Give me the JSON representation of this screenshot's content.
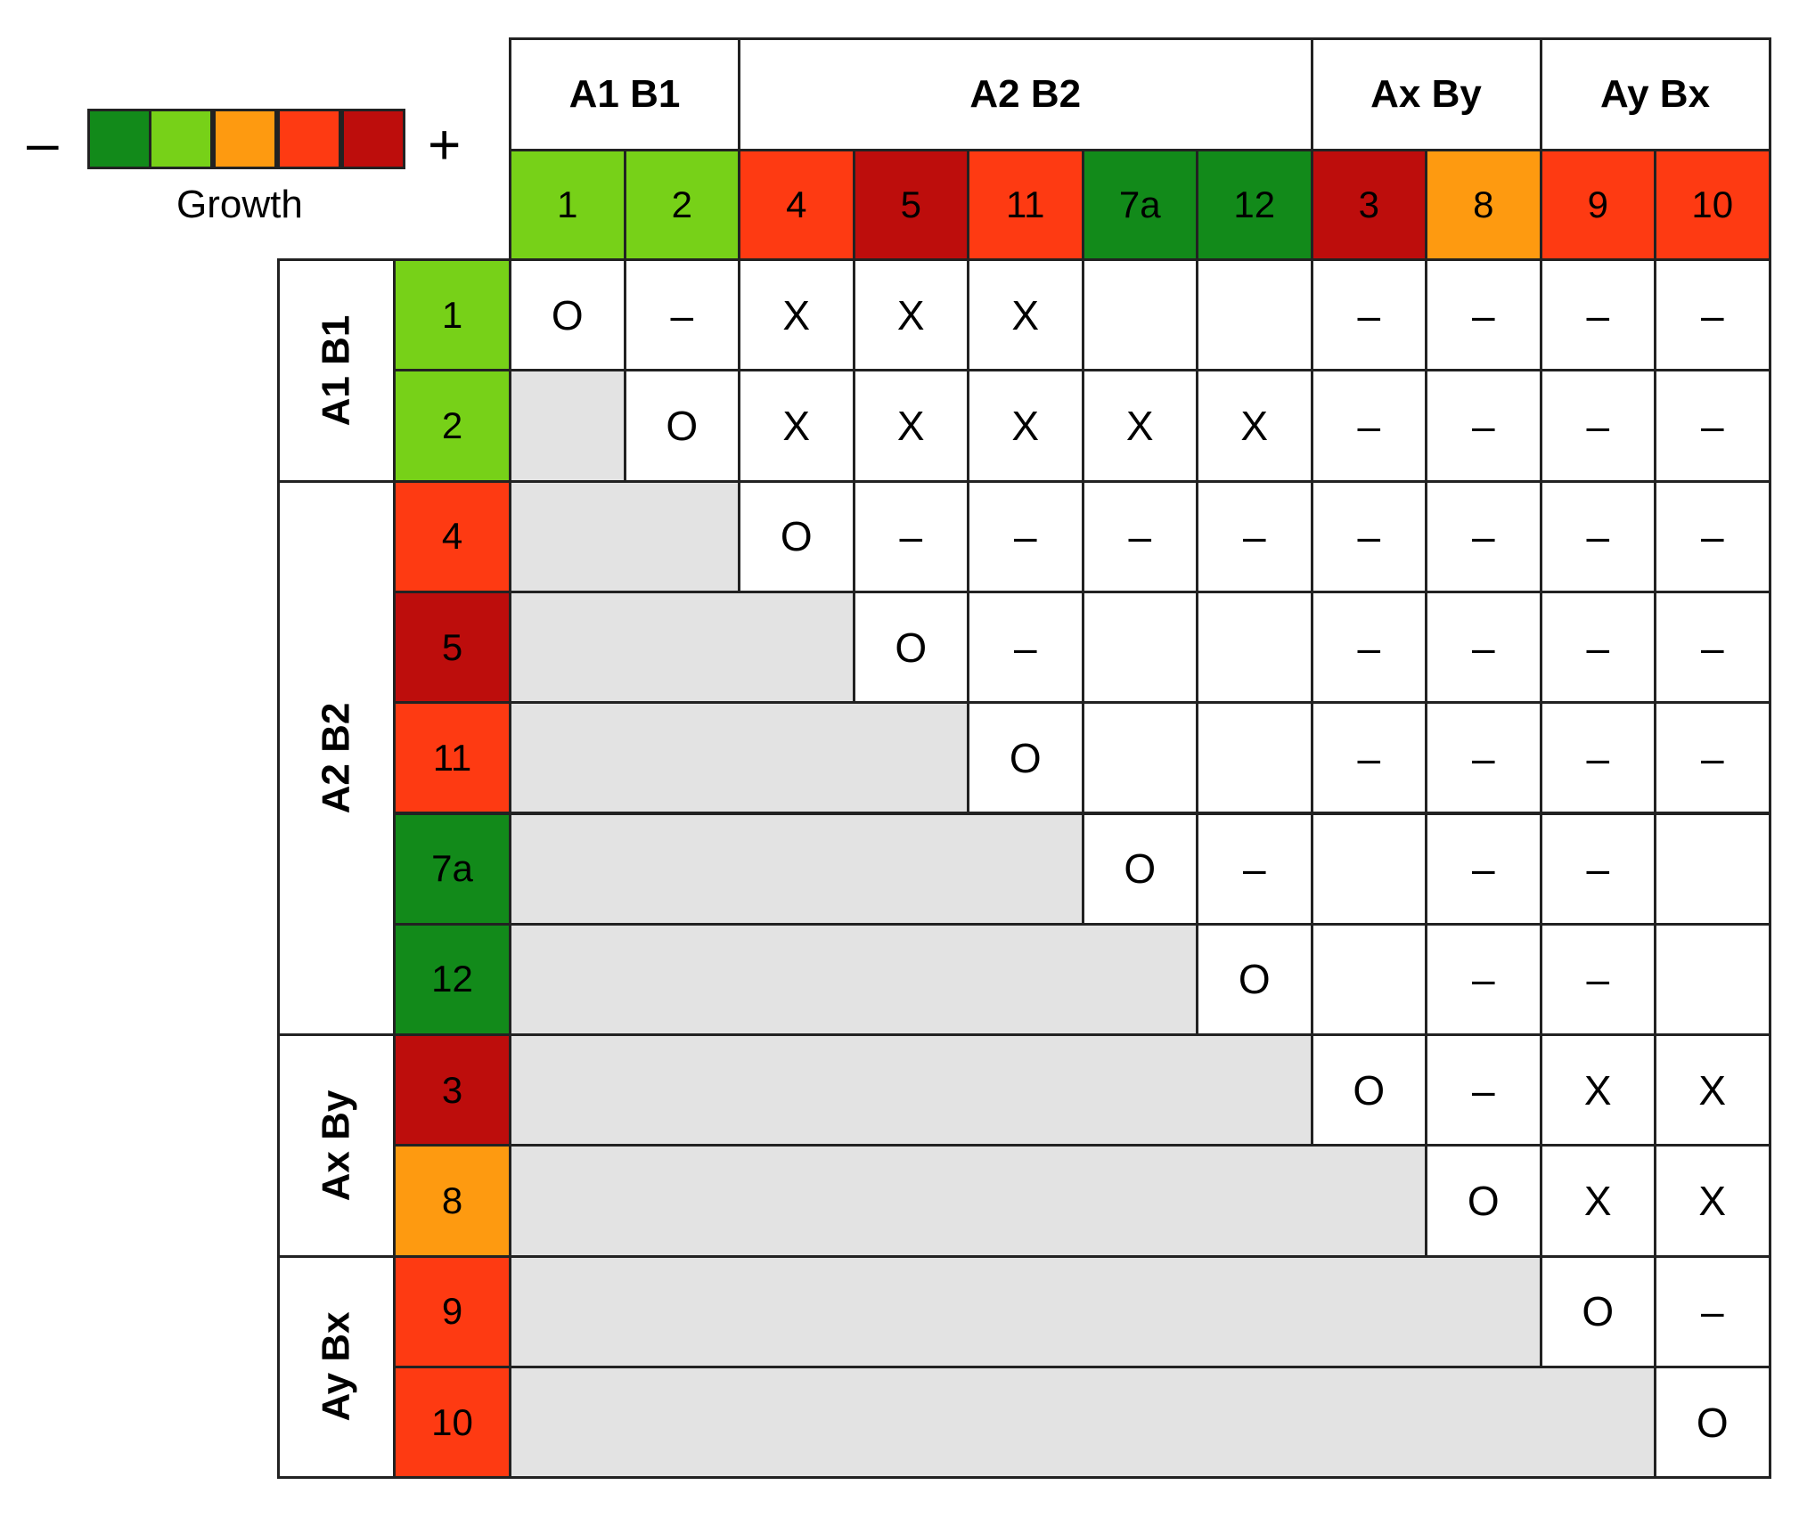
{
  "legend": {
    "minus": "–",
    "plus": "+",
    "label": "Growth",
    "scale": [
      "#128a1a",
      "#77d118",
      "#fe9a10",
      "#fe3a12",
      "#bd0d0c"
    ]
  },
  "groups": [
    {
      "name": "A1 B1",
      "members": [
        "1",
        "2"
      ]
    },
    {
      "name": "A2 B2",
      "members": [
        "4",
        "5",
        "11",
        "7a",
        "12"
      ]
    },
    {
      "name": "Ax By",
      "members": [
        "3",
        "8"
      ]
    },
    {
      "name": "Ay Bx",
      "members": [
        "9",
        "10"
      ]
    }
  ],
  "strains": [
    "1",
    "2",
    "4",
    "5",
    "11",
    "7a",
    "12",
    "3",
    "8",
    "9",
    "10"
  ],
  "strain_colors": {
    "1": "#77d118",
    "2": "#77d118",
    "4": "#fe3a12",
    "5": "#bd0d0c",
    "11": "#fe3a12",
    "7a": "#128a1a",
    "12": "#128a1a",
    "3": "#bd0d0c",
    "8": "#fe9a10",
    "9": "#fe3a12",
    "10": "#fe3a12"
  },
  "matrix": [
    [
      "O",
      "–",
      "X",
      "X",
      "X",
      "",
      "",
      "–",
      "–",
      "–",
      "–"
    ],
    [
      "",
      "O",
      "X",
      "X",
      "X",
      "X",
      "X",
      "–",
      "–",
      "–",
      "–"
    ],
    [
      "",
      "",
      "O",
      "–",
      "–",
      "–",
      "–",
      "–",
      "–",
      "–",
      "–"
    ],
    [
      "",
      "",
      "",
      "O",
      "–",
      "",
      "",
      "–",
      "–",
      "–",
      "–"
    ],
    [
      "",
      "",
      "",
      "",
      "O",
      "",
      "",
      "–",
      "–",
      "–",
      "–"
    ],
    [
      "",
      "",
      "",
      "",
      "",
      "O",
      "–",
      "",
      "–",
      "–",
      ""
    ],
    [
      "",
      "",
      "",
      "",
      "",
      "",
      "O",
      "",
      "–",
      "–",
      ""
    ],
    [
      "",
      "",
      "",
      "",
      "",
      "",
      "",
      "O",
      "–",
      "X",
      "X"
    ],
    [
      "",
      "",
      "",
      "",
      "",
      "",
      "",
      "",
      "O",
      "X",
      "X"
    ],
    [
      "",
      "",
      "",
      "",
      "",
      "",
      "",
      "",
      "",
      "O",
      "–"
    ],
    [
      "",
      "",
      "",
      "",
      "",
      "",
      "",
      "",
      "",
      "",
      "O"
    ]
  ],
  "colors": {
    "lower_fill": "#e3e3e3",
    "grid": "#222222"
  }
}
